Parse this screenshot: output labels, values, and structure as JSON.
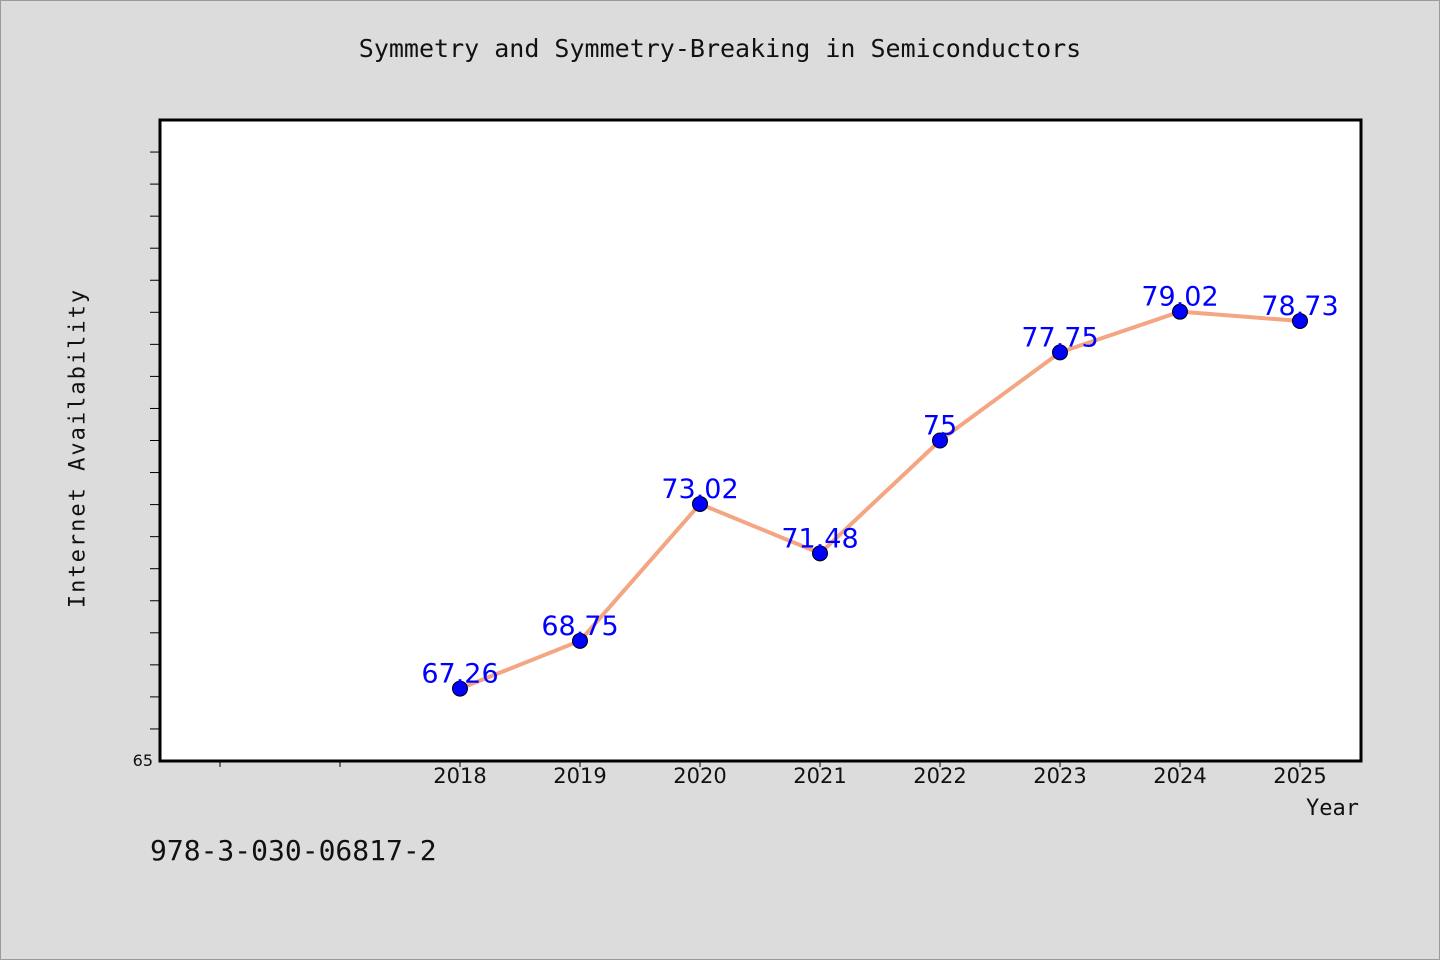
{
  "chart_data": {
    "type": "line",
    "title": "Symmetry and Symmetry-Breaking in Semiconductors",
    "xlabel": "Year",
    "ylabel": "Internet Availability",
    "categories": [
      "2018",
      "2019",
      "2020",
      "2021",
      "2022",
      "2023",
      "2024",
      "2025"
    ],
    "series": [
      {
        "values": [
          67.26,
          68.75,
          73.02,
          71.48,
          75,
          77.75,
          79.02,
          78.73
        ],
        "data_labels": [
          "67.26",
          "68.75",
          "73.02",
          "71.48",
          "75",
          "77.75",
          "79.02",
          "78.73"
        ],
        "line_color": "#f4a582",
        "marker_color": "#0000ff",
        "label_color": "#0000ff"
      }
    ],
    "ylim": [
      65,
      85
    ],
    "y_tick_labels": [
      "65"
    ],
    "grid": false,
    "legend": "none"
  },
  "footer": {
    "isbn": "978-3-030-06817-2"
  },
  "colors": {
    "background": "#dcdcdc",
    "plot_background": "#ffffff",
    "axis": "#000000"
  }
}
